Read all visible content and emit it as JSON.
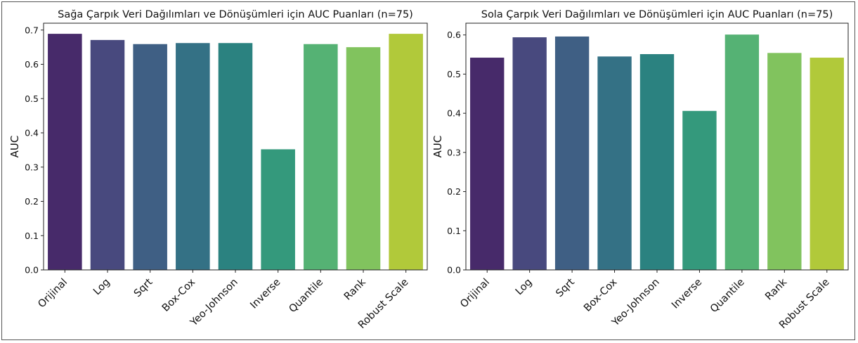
{
  "chart_data": [
    {
      "type": "bar",
      "title": "Sağa Çarpık Veri Dağılımları ve Dönüşümleri için AUC Puanları (n=75)",
      "xlabel": "",
      "ylabel": "AUC",
      "ylim": [
        0,
        0.72
      ],
      "yticks": [
        "0.0",
        "0.1",
        "0.2",
        "0.3",
        "0.4",
        "0.5",
        "0.6",
        "0.7"
      ],
      "categories": [
        "Orijinal",
        "Log",
        "Sqrt",
        "Box-Cox",
        "Yeo-Johnson",
        "Inverse",
        "Quantile",
        "Rank",
        "Robust Scale"
      ],
      "values": [
        0.689,
        0.671,
        0.659,
        0.662,
        0.662,
        0.352,
        0.659,
        0.65,
        0.689
      ],
      "colors": [
        "#472a6a",
        "#48497e",
        "#3f5f84",
        "#347185",
        "#2b8280",
        "#34997c",
        "#55b274",
        "#81c35e",
        "#b1c93a"
      ],
      "grid": false
    },
    {
      "type": "bar",
      "title": "Sola Çarpık Veri Dağılımları ve Dönüşümleri için AUC Puanları (n=75)",
      "xlabel": "",
      "ylabel": "AUC",
      "ylim": [
        0,
        0.63
      ],
      "yticks": [
        "0.0",
        "0.1",
        "0.2",
        "0.3",
        "0.4",
        "0.5",
        "0.6"
      ],
      "categories": [
        "Orijinal",
        "Log",
        "Sqrt",
        "Box-Cox",
        "Yeo-Johnson",
        "Inverse",
        "Quantile",
        "Rank",
        "Robust Scale"
      ],
      "values": [
        0.542,
        0.594,
        0.596,
        0.545,
        0.551,
        0.406,
        0.601,
        0.554,
        0.542
      ],
      "colors": [
        "#472a6a",
        "#48497e",
        "#3f5f84",
        "#347185",
        "#2b8280",
        "#34997c",
        "#55b274",
        "#81c35e",
        "#b1c93a"
      ],
      "grid": false
    }
  ]
}
